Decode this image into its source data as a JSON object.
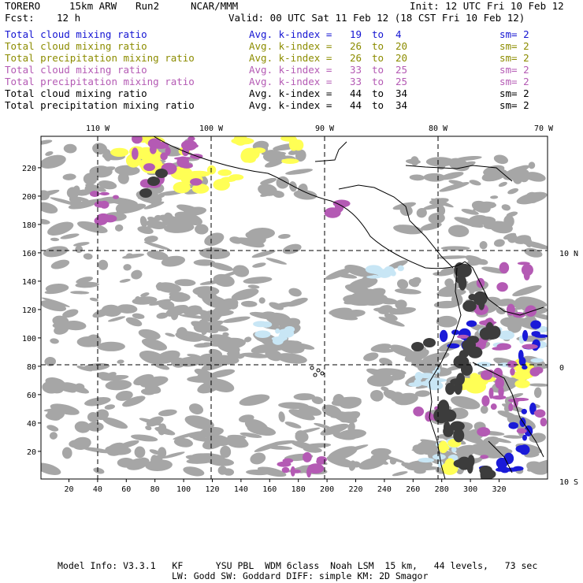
{
  "header": {
    "model": "TORERO",
    "resolution": "15km ARW",
    "run": "Run2",
    "org": "NCAR/MMM",
    "init": "Init: 12 UTC Fri 10 Feb 12",
    "fcst_label": "Fcst:",
    "fcst_value": "12 h",
    "valid": "Valid: 00 UTC Sat 11 Feb 12 (18 CST Fri 10 Feb 12)"
  },
  "legend": [
    {
      "field": "Total cloud mixing ratio",
      "stat": "Avg. k-index =",
      "from": "19",
      "to_word": "to",
      "to": "4",
      "sm": "sm= 2",
      "color": "#1414d2"
    },
    {
      "field": "Total cloud mixing ratio",
      "stat": "Avg. k-index =",
      "from": "26",
      "to_word": "to",
      "to": "20",
      "sm": "sm= 2",
      "color": "#8c8c00"
    },
    {
      "field": "Total precipitation mixing ratio",
      "stat": "Avg. k-index =",
      "from": "26",
      "to_word": "to",
      "to": "20",
      "sm": "sm= 2",
      "color": "#8c8c00"
    },
    {
      "field": "Total cloud mixing ratio",
      "stat": "Avg. k-index =",
      "from": "33",
      "to_word": "to",
      "to": "25",
      "sm": "sm= 2",
      "color": "#b45ab4"
    },
    {
      "field": "Total precipitation mixing ratio",
      "stat": "Avg. k-index =",
      "from": "33",
      "to_word": "to",
      "to": "25",
      "sm": "sm= 2",
      "color": "#b45ab4"
    },
    {
      "field": "Total cloud mixing ratio",
      "stat": "Avg. k-index =",
      "from": "44",
      "to_word": "to",
      "to": "34",
      "sm": "sm= 2",
      "color": "#000000"
    },
    {
      "field": "Total precipitation mixing ratio",
      "stat": "Avg. k-index =",
      "from": "44",
      "to_word": "to",
      "to": "34",
      "sm": "sm= 2",
      "color": "#000000"
    }
  ],
  "map": {
    "lon_labels": [
      "110 W",
      "100 W",
      "90 W",
      "80 W",
      "70 W"
    ],
    "lat_labels": [
      "10 N",
      "0",
      "10 S"
    ],
    "x_ticks": [
      "20",
      "40",
      "60",
      "80",
      "100",
      "120",
      "140",
      "160",
      "180",
      "200",
      "220",
      "240",
      "260",
      "280",
      "300",
      "320"
    ],
    "y_ticks": [
      "20",
      "40",
      "60",
      "80",
      "100",
      "120",
      "140",
      "160",
      "180",
      "200",
      "220"
    ],
    "colors": {
      "cloud": "#a6a6a6",
      "heavy": "#3c3c3c",
      "purple": "#b45ab4",
      "yellow": "#ffff55",
      "blue": "#1a1ad8",
      "lightblue": "#c8e6f5"
    }
  },
  "footer": {
    "line1": "Model Info: V3.3.1   KF      YSU PBL  WDM 6class  Noah LSM  15 km,   44 levels,   73 sec",
    "line2": "LW: Godd SW: Goddard DIFF: simple KM: 2D Smagor"
  }
}
